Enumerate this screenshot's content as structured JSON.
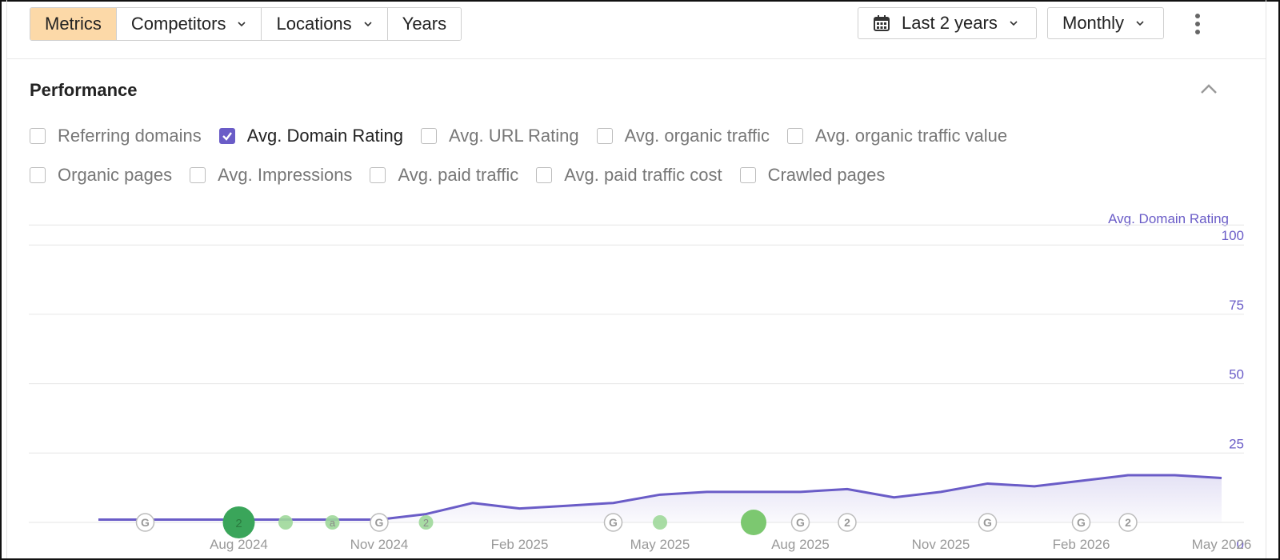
{
  "toolbar": {
    "tabs": [
      {
        "label": "Metrics",
        "active": true
      },
      {
        "label": "Competitors",
        "has_dropdown": true
      },
      {
        "label": "Locations",
        "has_dropdown": true
      },
      {
        "label": "Years"
      }
    ],
    "date_range": {
      "label": "Last 2 years",
      "icon": "calendar-icon"
    },
    "granularity": {
      "label": "Monthly"
    },
    "more_icon": "kebab-icon"
  },
  "section": {
    "title": "Performance",
    "collapse_icon": "chevron-up-icon"
  },
  "metrics": {
    "row1": [
      {
        "label": "Referring domains",
        "checked": false
      },
      {
        "label": "Avg. Domain Rating",
        "checked": true
      },
      {
        "label": "Avg. URL Rating",
        "checked": false
      },
      {
        "label": "Avg. organic traffic",
        "checked": false
      },
      {
        "label": "Avg. organic traffic value",
        "checked": false
      }
    ],
    "row2": [
      {
        "label": "Organic pages",
        "checked": false
      },
      {
        "label": "Avg. Impressions",
        "checked": false
      },
      {
        "label": "Avg. paid traffic",
        "checked": false
      },
      {
        "label": "Avg. paid traffic cost",
        "checked": false
      },
      {
        "label": "Crawled pages",
        "checked": false
      }
    ]
  },
  "colors": {
    "accent": "#6a5cc7",
    "active_tab": "#fcd9a8",
    "event_green": "#3aa55a",
    "event_green_light": "#9fd89a"
  },
  "chart_data": {
    "type": "area",
    "series": [
      {
        "name": "Avg. Domain Rating",
        "x": [
          "May 2024",
          "Jun 2024",
          "Jul 2024",
          "Aug 2024",
          "Sep 2024",
          "Oct 2024",
          "Nov 2024",
          "Dec 2024",
          "Jan 2025",
          "Feb 2025",
          "Mar 2025",
          "Apr 2025",
          "May 2025",
          "Jun 2025",
          "Jul 2025",
          "Aug 2025",
          "Sep 2025",
          "Oct 2025",
          "Nov 2025",
          "Dec 2025",
          "Jan 2026",
          "Feb 2026",
          "Mar 2026",
          "Apr 2026",
          "May 2026"
        ],
        "values": [
          1,
          1,
          1,
          1,
          1,
          1,
          1,
          3,
          7,
          5,
          6,
          7,
          10,
          11,
          11,
          11,
          12,
          9,
          11,
          14,
          13,
          15,
          17,
          17,
          16
        ]
      }
    ],
    "x_ticks": [
      "Aug 2024",
      "Nov 2024",
      "Feb 2025",
      "May 2025",
      "Aug 2025",
      "Nov 2025",
      "Feb 2026",
      "May 2026"
    ],
    "y_ticks": [
      0,
      25,
      50,
      75,
      100
    ],
    "ylim": [
      0,
      100
    ],
    "y_axis_label": "Avg. Domain Rating",
    "grid": true,
    "events": [
      {
        "x": "Jun 2024",
        "label": "G",
        "kind": "google-update"
      },
      {
        "x": "Aug 2024",
        "label": "2",
        "kind": "big-green"
      },
      {
        "x": "Sep 2024",
        "label": "",
        "kind": "small-green"
      },
      {
        "x": "Oct 2024",
        "label": "a",
        "kind": "small-green"
      },
      {
        "x": "Nov 2024",
        "label": "G",
        "kind": "google-update"
      },
      {
        "x": "Dec 2024",
        "label": "2",
        "kind": "small-green"
      },
      {
        "x": "Apr 2025",
        "label": "G",
        "kind": "google-update"
      },
      {
        "x": "May 2025",
        "label": "",
        "kind": "small-green"
      },
      {
        "x": "Jul 2025",
        "label": "G",
        "kind": "google-update"
      },
      {
        "x": "Jul 2025",
        "label": "",
        "kind": "big-green"
      },
      {
        "x": "Aug 2025",
        "label": "G",
        "kind": "google-update"
      },
      {
        "x": "Sep 2025",
        "label": "2",
        "kind": "google-update"
      },
      {
        "x": "Dec 2025",
        "label": "G",
        "kind": "google-update"
      },
      {
        "x": "Feb 2026",
        "label": "G",
        "kind": "google-update"
      },
      {
        "x": "Mar 2026",
        "label": "2",
        "kind": "google-update"
      }
    ]
  }
}
